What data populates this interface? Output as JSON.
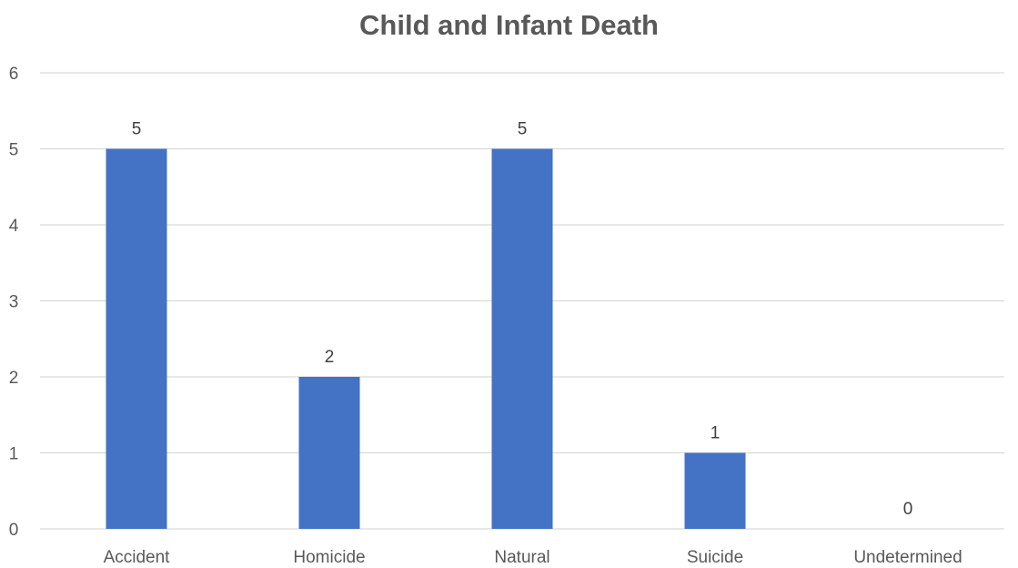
{
  "chart_data": {
    "type": "bar",
    "title": "Child and Infant Death",
    "xlabel": "",
    "ylabel": "",
    "categories": [
      "Accident",
      "Homicide",
      "Natural",
      "Suicide",
      "Undetermined"
    ],
    "values": [
      5,
      2,
      5,
      1,
      0
    ],
    "data_labels": [
      "5",
      "2",
      "5",
      "1",
      "0"
    ],
    "ylim": [
      0,
      6
    ],
    "yticks": [
      "0",
      "1",
      "2",
      "3",
      "4",
      "5",
      "6"
    ],
    "grid": true,
    "legend": "none",
    "colors": {
      "bar": "#4472C4",
      "grid": "#D9D9D9",
      "text": "#595959",
      "title": "#595959"
    }
  }
}
